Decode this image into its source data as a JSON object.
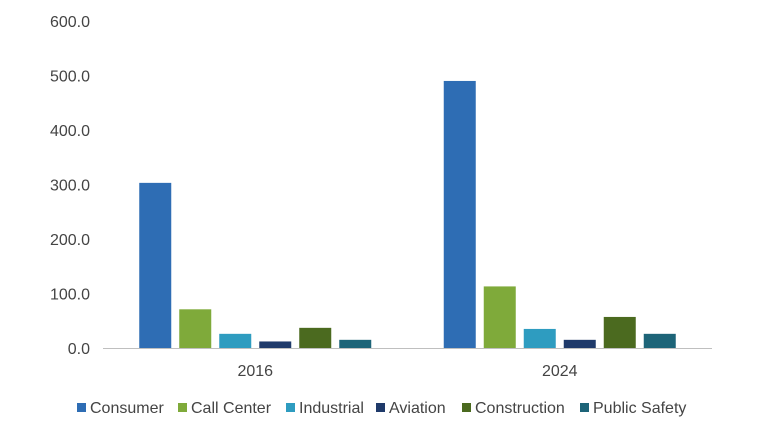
{
  "chart_data": {
    "type": "bar",
    "categories": [
      "2016",
      "2024"
    ],
    "series": [
      {
        "name": "Consumer",
        "values": [
          303,
          490
        ],
        "color": "#2E6DB4"
      },
      {
        "name": "Call Center",
        "values": [
          71,
          113
        ],
        "color": "#7FAA3A"
      },
      {
        "name": "Industrial",
        "values": [
          26,
          35
        ],
        "color": "#2E9CC0"
      },
      {
        "name": "Aviation",
        "values": [
          12,
          15
        ],
        "color": "#1F3A6A"
      },
      {
        "name": "Construction",
        "values": [
          37,
          57
        ],
        "color": "#4B6A1F"
      },
      {
        "name": "Public Safety",
        "values": [
          15,
          26
        ],
        "color": "#1D6478"
      }
    ],
    "title": "",
    "xlabel": "",
    "ylabel": "",
    "ylim": [
      0,
      600
    ],
    "yticks": [
      "0.0",
      "100.0",
      "200.0",
      "300.0",
      "400.0",
      "500.0",
      "600.0"
    ],
    "grid": false,
    "legend_position": "bottom"
  }
}
